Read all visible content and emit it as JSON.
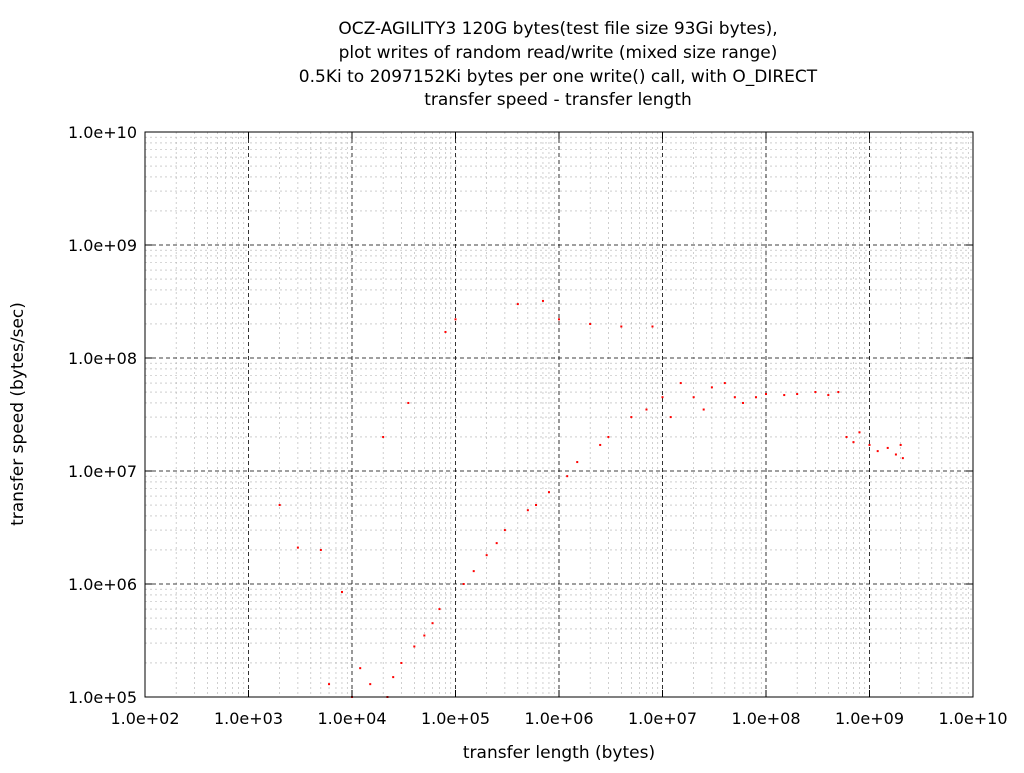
{
  "chart_data": {
    "type": "scatter",
    "title_lines": [
      "OCZ-AGILITY3 120G bytes(test file size 93Gi bytes),",
      "plot writes of random read/write (mixed size range)",
      "0.5Ki to 2097152Ki bytes per one write() call, with O_DIRECT",
      "transfer speed - transfer length"
    ],
    "xlabel": "transfer length (bytes)",
    "ylabel": "transfer speed (bytes/sec)",
    "x_scale": "log",
    "y_scale": "log",
    "xlim": [
      100,
      10000000000
    ],
    "ylim": [
      100000,
      10000000000
    ],
    "x_ticks": [
      "1.0e+02",
      "1.0e+03",
      "1.0e+04",
      "1.0e+05",
      "1.0e+06",
      "1.0e+07",
      "1.0e+08",
      "1.0e+09",
      "1.0e+10"
    ],
    "y_ticks": [
      "1.0e+05",
      "1.0e+06",
      "1.0e+07",
      "1.0e+08",
      "1.0e+09",
      "1.0e+10"
    ],
    "grid": true,
    "legend": "none",
    "point_color": "#ff0000",
    "series": [
      {
        "points": [
          [
            2000,
            5000000
          ],
          [
            3000,
            2100000
          ],
          [
            5000,
            2000000
          ],
          [
            6000,
            130000
          ],
          [
            8000,
            850000
          ],
          [
            10000,
            100000
          ],
          [
            12000,
            180000
          ],
          [
            15000,
            130000
          ],
          [
            20000,
            20000000
          ],
          [
            22000,
            100000
          ],
          [
            25000,
            150000
          ],
          [
            30000,
            200000
          ],
          [
            35000,
            40000000
          ],
          [
            40000,
            280000
          ],
          [
            50000,
            350000
          ],
          [
            60000,
            450000
          ],
          [
            70000,
            600000
          ],
          [
            80000,
            170000000
          ],
          [
            100000,
            220000000
          ],
          [
            120000,
            1000000
          ],
          [
            150000,
            1300000
          ],
          [
            200000,
            1800000
          ],
          [
            250000,
            2300000
          ],
          [
            300000,
            3000000
          ],
          [
            400000,
            300000000
          ],
          [
            500000,
            4500000
          ],
          [
            600000,
            5000000
          ],
          [
            700000,
            320000000
          ],
          [
            800000,
            6500000
          ],
          [
            1000000,
            220000000
          ],
          [
            1200000,
            9000000
          ],
          [
            1500000,
            12000000
          ],
          [
            2000000,
            200000000
          ],
          [
            2500000,
            17000000
          ],
          [
            3000000,
            20000000
          ],
          [
            4000000,
            190000000
          ],
          [
            5000000,
            30000000
          ],
          [
            7000000,
            35000000
          ],
          [
            8000000,
            190000000
          ],
          [
            10000000,
            45000000
          ],
          [
            12000000,
            30000000
          ],
          [
            15000000,
            60000000
          ],
          [
            20000000,
            45000000
          ],
          [
            25000000,
            35000000
          ],
          [
            30000000,
            55000000
          ],
          [
            40000000,
            60000000
          ],
          [
            50000000,
            45000000
          ],
          [
            60000000,
            40000000
          ],
          [
            80000000,
            45000000
          ],
          [
            100000000,
            48000000
          ],
          [
            150000000,
            47000000
          ],
          [
            200000000,
            48000000
          ],
          [
            300000000,
            50000000
          ],
          [
            400000000,
            47000000
          ],
          [
            500000000,
            50000000
          ],
          [
            600000000,
            20000000
          ],
          [
            700000000,
            18000000
          ],
          [
            800000000,
            22000000
          ],
          [
            1000000000,
            17000000
          ],
          [
            1200000000,
            15000000
          ],
          [
            1500000000,
            16000000
          ],
          [
            1800000000,
            14000000
          ],
          [
            2000000000,
            17000000
          ],
          [
            2100000000,
            13000000
          ]
        ]
      }
    ]
  }
}
